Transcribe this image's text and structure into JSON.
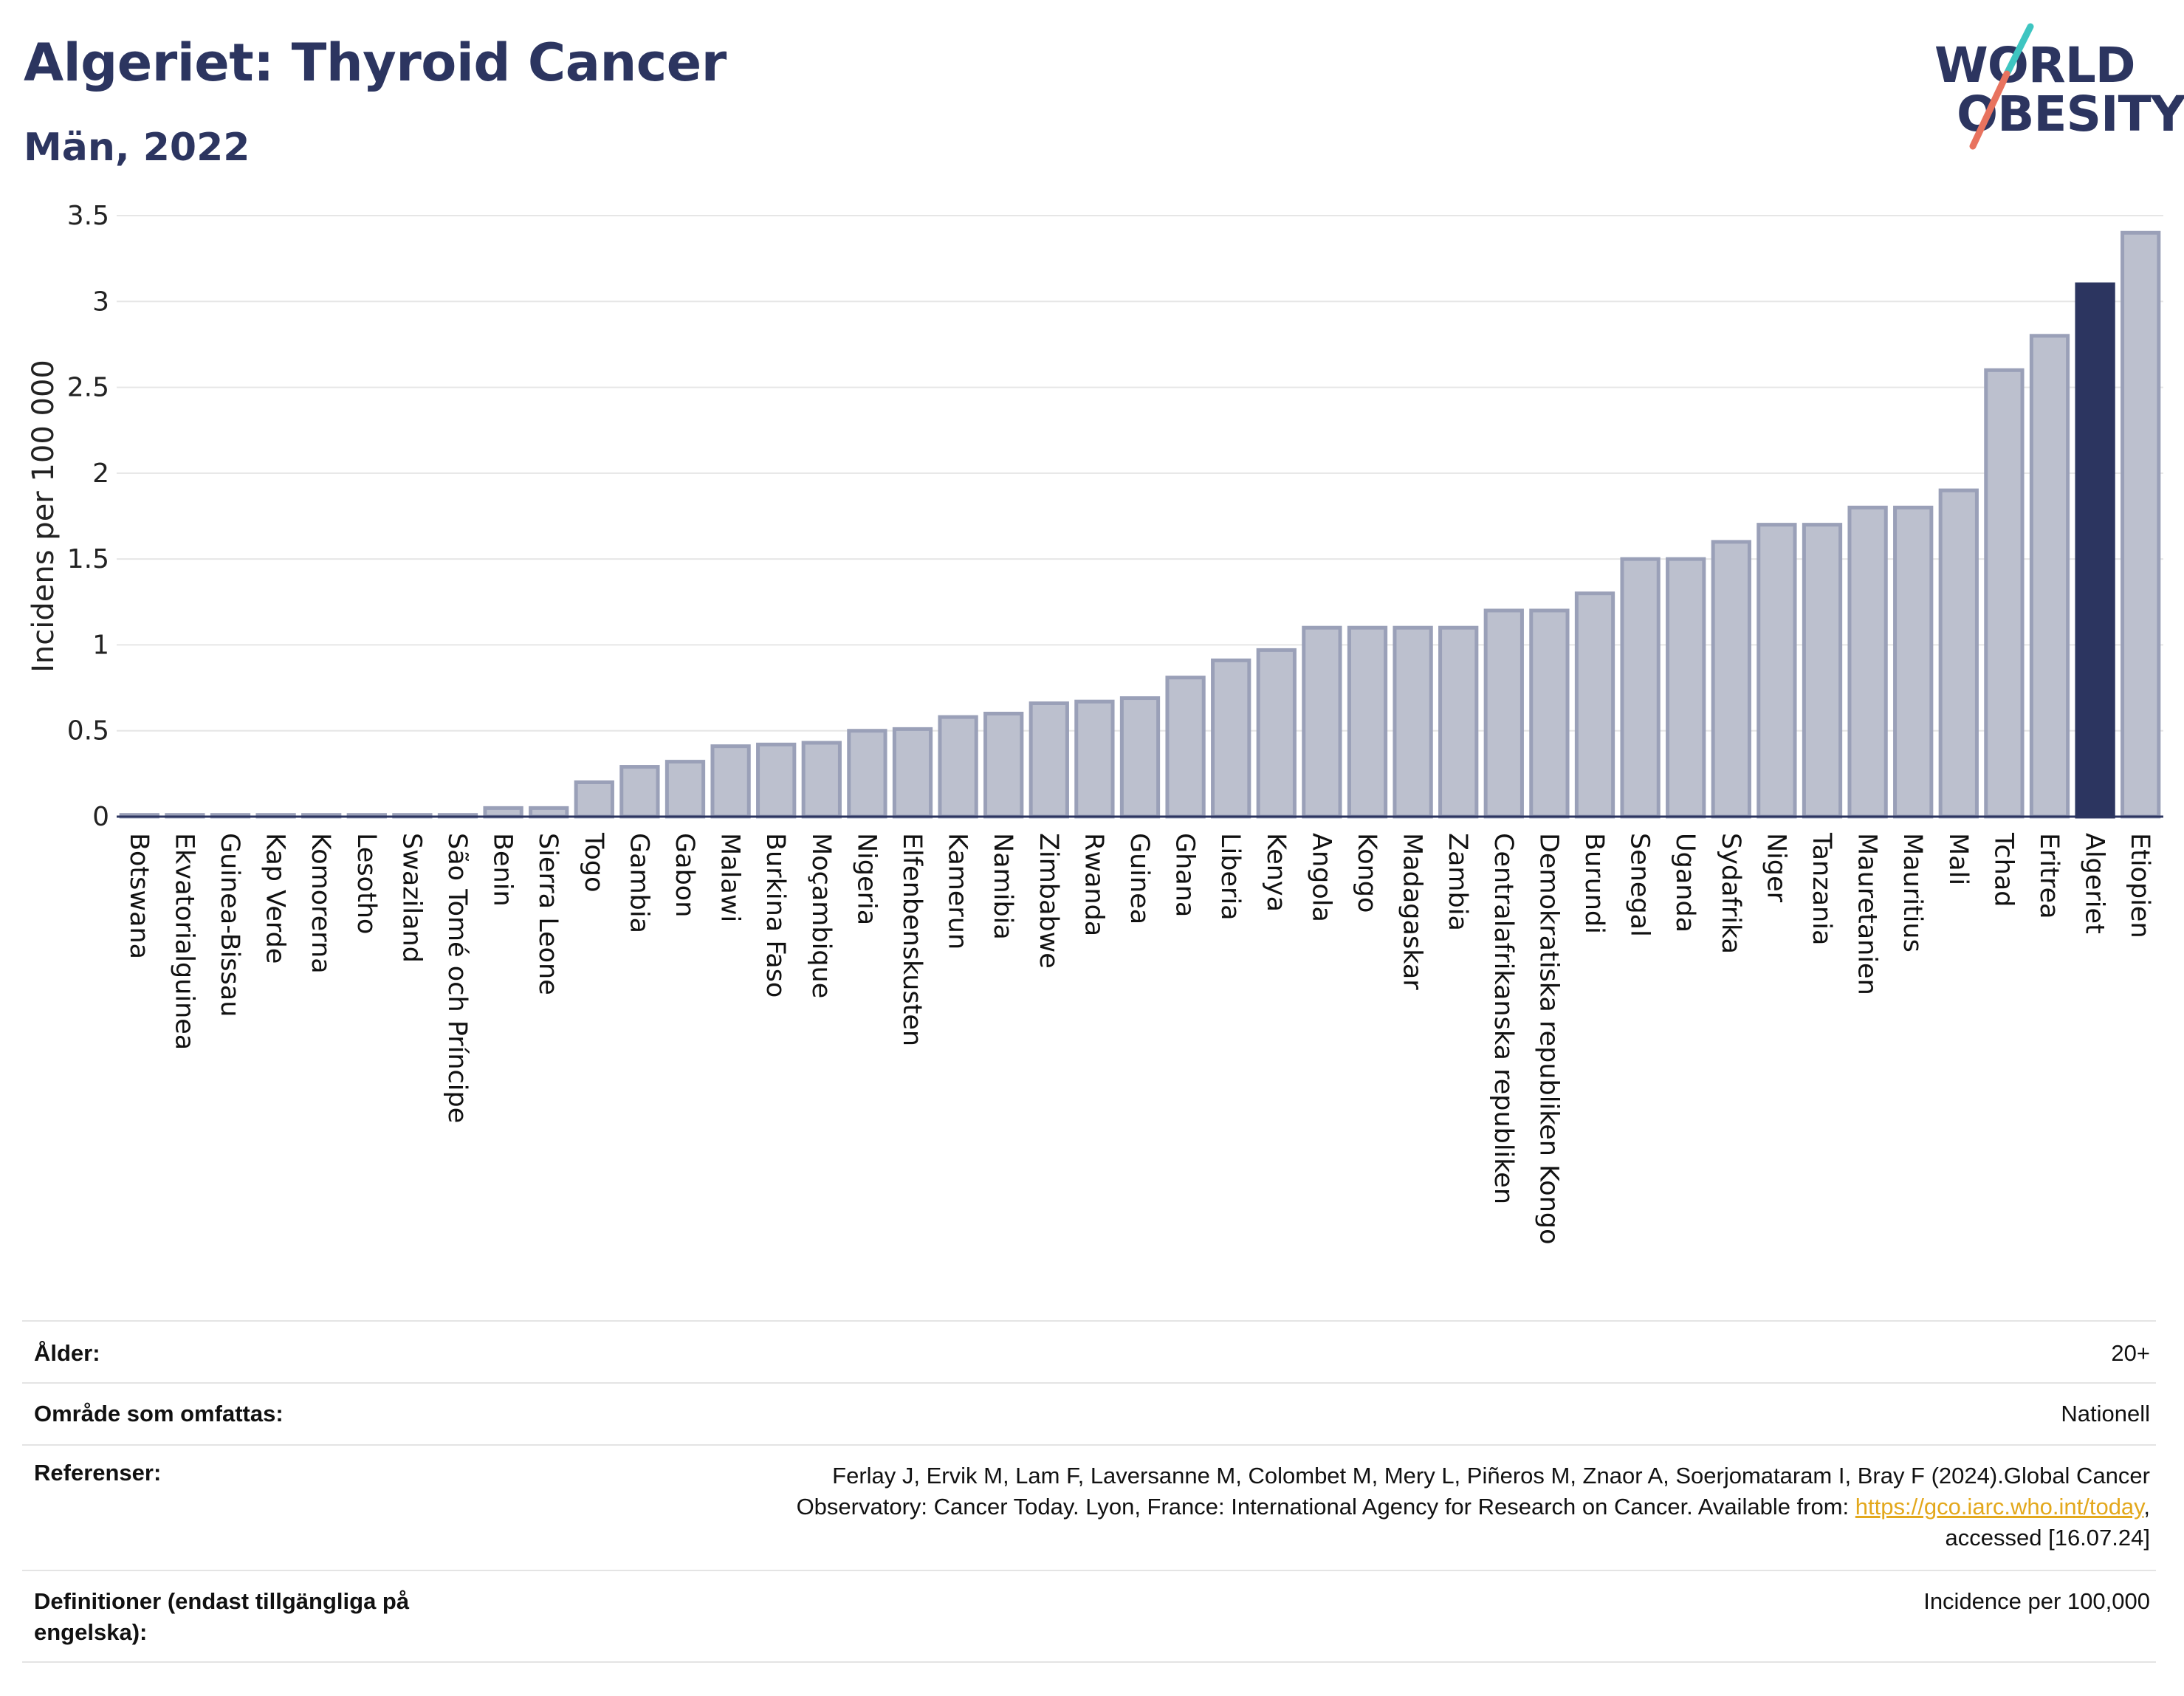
{
  "header": {
    "title": "Algeriet: Thyroid Cancer",
    "subtitle": "Män, 2022",
    "logo_line1": "WORLD",
    "logo_line2": "OBESITY"
  },
  "colors": {
    "highlight": "#2c3560",
    "bar_fill": "#bcc0ce",
    "bar_stroke": "#9aa0b8",
    "grid": "#e6e6e6",
    "logo_teal": "#3ec5c1",
    "logo_coral": "#e8735f",
    "link": "#e3a81c"
  },
  "chart_data": {
    "type": "bar",
    "ylabel": "Incidens per 100 000",
    "ylim": [
      0,
      3.5
    ],
    "yticks": [
      0,
      0.5,
      1,
      1.5,
      2,
      2.5,
      3,
      3.5
    ],
    "ytick_labels": [
      "0",
      "0.5",
      "1",
      "1.5",
      "2",
      "2.5",
      "3",
      "3.5"
    ],
    "grid": true,
    "highlight": "Algeriet",
    "categories": [
      "Botswana",
      "Ekvatorialguinea",
      "Guinea-Bissau",
      "Kap Verde",
      "Komorerna",
      "Lesotho",
      "Swaziland",
      "São Tomé och Príncipe",
      "Benin",
      "Sierra Leone",
      "Togo",
      "Gambia",
      "Gabon",
      "Malawi",
      "Burkina Faso",
      "Moçambique",
      "Nigeria",
      "Elfenbenskusten",
      "Kamerun",
      "Namibia",
      "Zimbabwe",
      "Rwanda",
      "Guinea",
      "Ghana",
      "Liberia",
      "Kenya",
      "Angola",
      "Kongo",
      "Madagaskar",
      "Zambia",
      "Centralafrikanska republiken",
      "Demokratiska republiken Kongo",
      "Burundi",
      "Senegal",
      "Uganda",
      "Sydafrika",
      "Niger",
      "Tanzania",
      "Mauretanien",
      "Mauritius",
      "Mali",
      "Tchad",
      "Eritrea",
      "Algeriet",
      "Etiopien"
    ],
    "values": [
      0.01,
      0.01,
      0.01,
      0.01,
      0.01,
      0.01,
      0.01,
      0.01,
      0.05,
      0.05,
      0.2,
      0.29,
      0.32,
      0.41,
      0.42,
      0.43,
      0.5,
      0.51,
      0.58,
      0.6,
      0.66,
      0.67,
      0.69,
      0.81,
      0.91,
      0.97,
      1.1,
      1.1,
      1.1,
      1.1,
      1.2,
      1.2,
      1.3,
      1.5,
      1.5,
      1.6,
      1.7,
      1.7,
      1.8,
      1.8,
      1.9,
      2.6,
      2.8,
      3.1,
      3.4
    ]
  },
  "info": {
    "age_label": "Ålder:",
    "age_value": "20+",
    "area_label": "Område som omfattas:",
    "area_value": "Nationell",
    "refs_label": "Referenser:",
    "refs_line1": "Ferlay J, Ervik M, Lam F, Laversanne M, Colombet M, Mery L, Piñeros M, Znaor A, Soerjomataram I, Bray F (2024).Global Cancer",
    "refs_line2": "Observatory: Cancer Today. Lyon, France: International Agency for Research on Cancer. Available from: ",
    "refs_link": "https://gco.iarc.who.int/today",
    "refs_line2_end": ",",
    "refs_line3": "accessed [16.07.24]",
    "defs_label_1": "Definitioner (endast tillgängliga på",
    "defs_label_2": "engelska):",
    "defs_value": "Incidence per 100,000"
  }
}
